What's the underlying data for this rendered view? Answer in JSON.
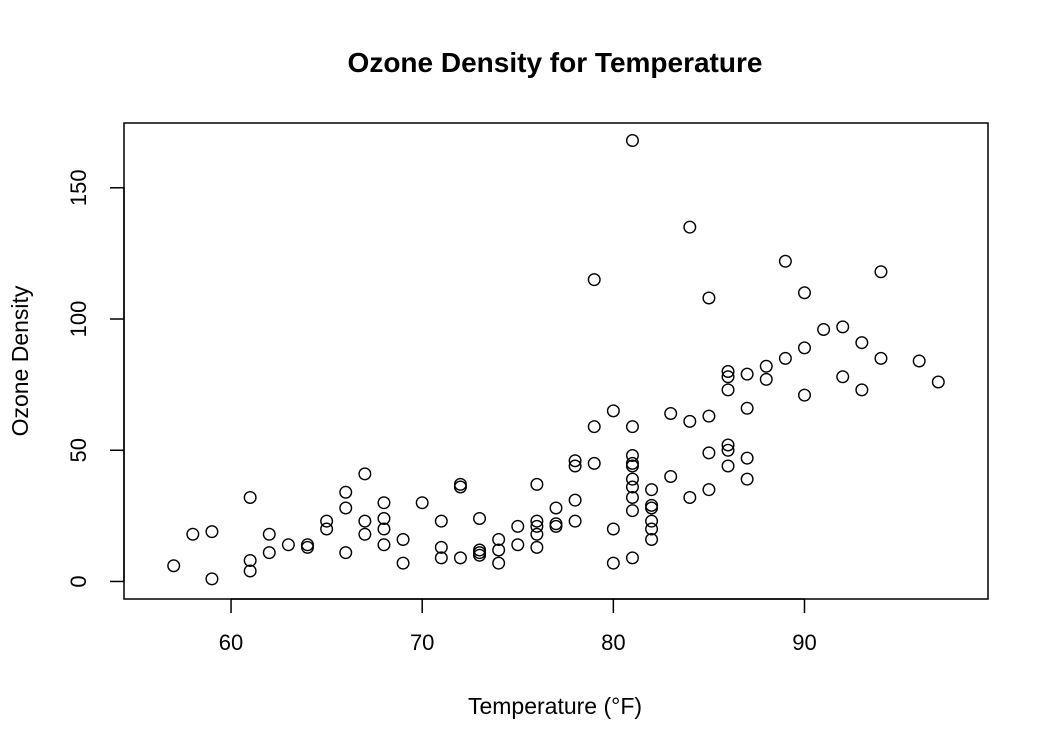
{
  "chart_data": {
    "type": "scatter",
    "title": "Ozone Density for Temperature",
    "xlabel": "Temperature (°F)",
    "ylabel": "Ozone Density",
    "xlim": [
      54.4,
      99.6
    ],
    "ylim": [
      -6.68,
      174.68
    ],
    "xticks": [
      60,
      70,
      80,
      90
    ],
    "yticks": [
      0,
      50,
      100,
      150
    ],
    "grid": false,
    "legend": "none",
    "marker": "open-circle",
    "points": [
      [
        57,
        6
      ],
      [
        58,
        18
      ],
      [
        59,
        19
      ],
      [
        59,
        1
      ],
      [
        61,
        32
      ],
      [
        61,
        8
      ],
      [
        61,
        4
      ],
      [
        62,
        18
      ],
      [
        62,
        11
      ],
      [
        63,
        14
      ],
      [
        64,
        14
      ],
      [
        64,
        13
      ],
      [
        65,
        23
      ],
      [
        65,
        20
      ],
      [
        66,
        34
      ],
      [
        66,
        28
      ],
      [
        66,
        11
      ],
      [
        67,
        41
      ],
      [
        67,
        23
      ],
      [
        67,
        18
      ],
      [
        68,
        30
      ],
      [
        68,
        24
      ],
      [
        68,
        20
      ],
      [
        68,
        14
      ],
      [
        69,
        16
      ],
      [
        69,
        7
      ],
      [
        70,
        30
      ],
      [
        71,
        23
      ],
      [
        71,
        13
      ],
      [
        71,
        9
      ],
      [
        72,
        37
      ],
      [
        72,
        36
      ],
      [
        72,
        9
      ],
      [
        73,
        24
      ],
      [
        73,
        12
      ],
      [
        73,
        11
      ],
      [
        73,
        10
      ],
      [
        74,
        16
      ],
      [
        74,
        12
      ],
      [
        74,
        7
      ],
      [
        75,
        21
      ],
      [
        75,
        14
      ],
      [
        76,
        37
      ],
      [
        76,
        23
      ],
      [
        76,
        21
      ],
      [
        76,
        18
      ],
      [
        76,
        13
      ],
      [
        77,
        28
      ],
      [
        77,
        22
      ],
      [
        77,
        21
      ],
      [
        78,
        46
      ],
      [
        78,
        44
      ],
      [
        78,
        31
      ],
      [
        78,
        23
      ],
      [
        79,
        115
      ],
      [
        79,
        59
      ],
      [
        79,
        45
      ],
      [
        80,
        65
      ],
      [
        80,
        20
      ],
      [
        80,
        7
      ],
      [
        81,
        168
      ],
      [
        81,
        59
      ],
      [
        81,
        48
      ],
      [
        81,
        45
      ],
      [
        81,
        44
      ],
      [
        81,
        39
      ],
      [
        81,
        36
      ],
      [
        81,
        32
      ],
      [
        81,
        27
      ],
      [
        81,
        9
      ],
      [
        82,
        35
      ],
      [
        82,
        29
      ],
      [
        82,
        28
      ],
      [
        82,
        23
      ],
      [
        82,
        20
      ],
      [
        82,
        16
      ],
      [
        83,
        64
      ],
      [
        83,
        40
      ],
      [
        84,
        135
      ],
      [
        84,
        61
      ],
      [
        84,
        32
      ],
      [
        85,
        108
      ],
      [
        85,
        63
      ],
      [
        85,
        49
      ],
      [
        85,
        35
      ],
      [
        86,
        80
      ],
      [
        86,
        78
      ],
      [
        86,
        73
      ],
      [
        86,
        52
      ],
      [
        86,
        50
      ],
      [
        86,
        44
      ],
      [
        87,
        79
      ],
      [
        87,
        66
      ],
      [
        87,
        47
      ],
      [
        87,
        39
      ],
      [
        88,
        82
      ],
      [
        88,
        77
      ],
      [
        89,
        122
      ],
      [
        89,
        85
      ],
      [
        90,
        110
      ],
      [
        90,
        89
      ],
      [
        90,
        71
      ],
      [
        91,
        96
      ],
      [
        92,
        97
      ],
      [
        92,
        78
      ],
      [
        93,
        91
      ],
      [
        93,
        73
      ],
      [
        94,
        118
      ],
      [
        94,
        85
      ],
      [
        96,
        84
      ],
      [
        97,
        76
      ]
    ]
  }
}
